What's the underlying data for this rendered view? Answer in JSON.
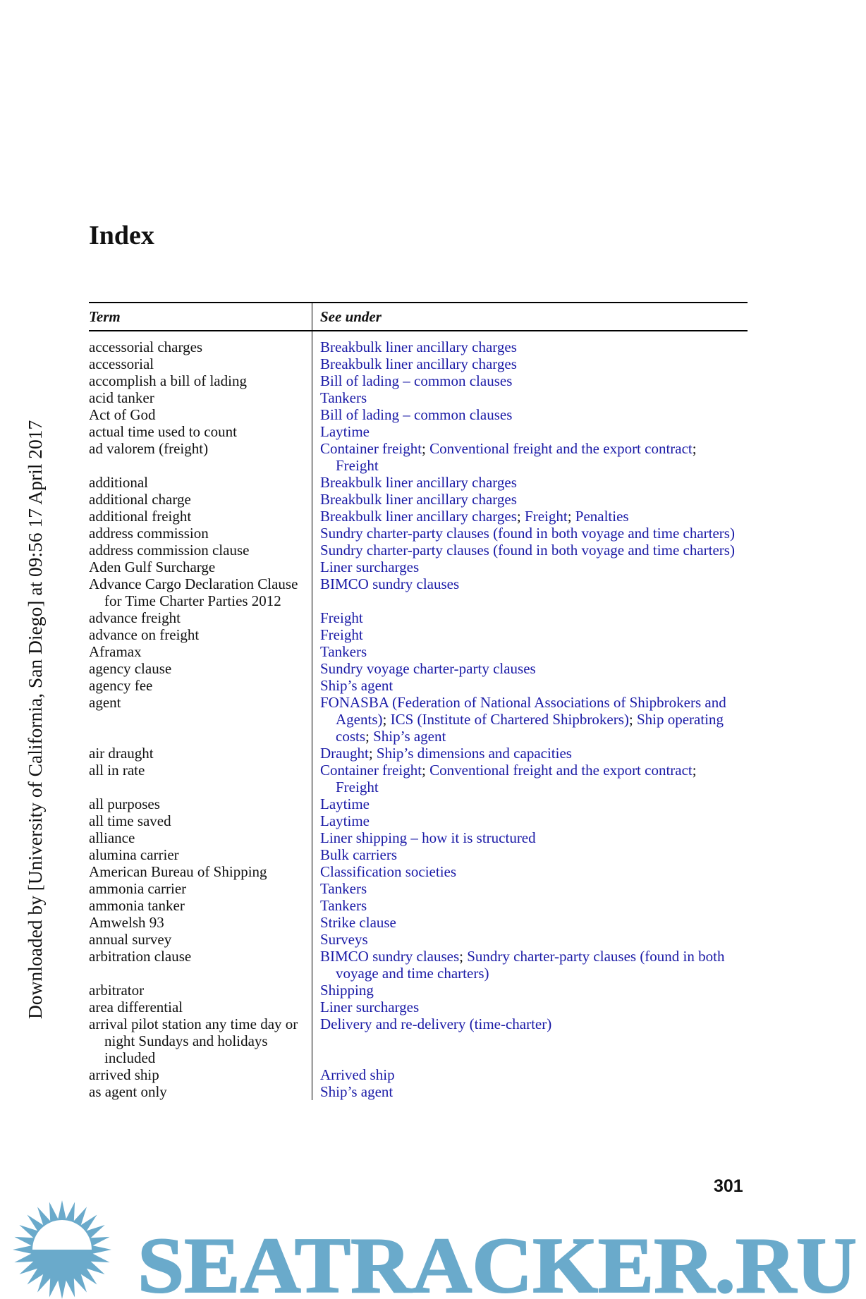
{
  "side_note": "Downloaded by [University of California, San Diego] at 09:56 17 April 2017",
  "title": "Index",
  "table": {
    "headers": {
      "term": "Term",
      "see_under": "See under"
    },
    "rows": [
      {
        "term": "accessorial charges",
        "see": [
          "Breakbulk liner ancillary charges"
        ]
      },
      {
        "term": "accessorial",
        "see": [
          "Breakbulk liner ancillary charges"
        ]
      },
      {
        "term": "accomplish a bill of lading",
        "see": [
          "Bill of lading – common clauses"
        ]
      },
      {
        "term": "acid tanker",
        "see": [
          "Tankers"
        ]
      },
      {
        "term": "Act of God",
        "see": [
          "Bill of lading – common clauses"
        ]
      },
      {
        "term": "actual time used to count",
        "see": [
          "Laytime"
        ]
      },
      {
        "term": "ad valorem (freight)",
        "see": [
          "Container freight",
          "Conventional freight and the export contract",
          "Freight"
        ]
      },
      {
        "term": "additional",
        "see": [
          "Breakbulk liner ancillary charges"
        ]
      },
      {
        "term": "additional charge",
        "see": [
          "Breakbulk liner ancillary charges"
        ]
      },
      {
        "term": "additional freight",
        "see": [
          "Breakbulk liner ancillary charges",
          "Freight",
          "Penalties"
        ]
      },
      {
        "term": "address commission",
        "see": [
          "Sundry charter-party clauses (found in both voyage and time charters)"
        ]
      },
      {
        "term": "address commission clause",
        "see": [
          "Sundry charter-party clauses (found in both voyage and time charters)"
        ]
      },
      {
        "term": "Aden Gulf Surcharge",
        "see": [
          "Liner surcharges"
        ]
      },
      {
        "term": "Advance Cargo Declaration Clause for Time Charter Parties 2012",
        "see": [
          "BIMCO sundry clauses"
        ]
      },
      {
        "term": "advance freight",
        "see": [
          "Freight"
        ]
      },
      {
        "term": "advance on freight",
        "see": [
          "Freight"
        ]
      },
      {
        "term": "Aframax",
        "see": [
          "Tankers"
        ]
      },
      {
        "term": "agency clause",
        "see": [
          "Sundry voyage charter-party clauses"
        ]
      },
      {
        "term": "agency fee",
        "see": [
          "Ship’s agent"
        ]
      },
      {
        "term": "agent",
        "see": [
          "FONASBA (Federation of National Associations of Shipbrokers and Agents)",
          "ICS (Institute of Chartered Shipbrokers)",
          "Ship operating costs",
          "Ship’s agent"
        ]
      },
      {
        "term": "air draught",
        "see": [
          "Draught",
          "Ship’s dimensions and capacities"
        ]
      },
      {
        "term": "all in rate",
        "see": [
          "Container freight",
          "Conventional freight and the export contract",
          "Freight"
        ]
      },
      {
        "term": "all purposes",
        "see": [
          "Laytime"
        ]
      },
      {
        "term": "all time saved",
        "see": [
          "Laytime"
        ]
      },
      {
        "term": "alliance",
        "see": [
          "Liner shipping – how it is structured"
        ]
      },
      {
        "term": "alumina carrier",
        "see": [
          "Bulk carriers"
        ]
      },
      {
        "term": "American Bureau of Shipping",
        "see": [
          "Classification societies"
        ]
      },
      {
        "term": "ammonia carrier",
        "see": [
          "Tankers"
        ]
      },
      {
        "term": "ammonia tanker",
        "see": [
          "Tankers"
        ]
      },
      {
        "term": "Amwelsh 93",
        "see": [
          "Strike clause"
        ]
      },
      {
        "term": "annual survey",
        "see": [
          "Surveys"
        ]
      },
      {
        "term": "arbitration clause",
        "see": [
          "BIMCO sundry clauses",
          "Sundry charter-party clauses (found in both voyage and time charters)"
        ]
      },
      {
        "term": "arbitrator",
        "see": [
          "Shipping"
        ]
      },
      {
        "term": "area differential",
        "see": [
          "Liner surcharges"
        ]
      },
      {
        "term": "arrival pilot station any time day or night Sundays and holidays included",
        "see": [
          "Delivery and re-delivery (time-charter)"
        ]
      },
      {
        "term": "arrived ship",
        "see": [
          "Arrived ship"
        ]
      },
      {
        "term": "as agent only",
        "see": [
          "Ship’s agent"
        ]
      }
    ]
  },
  "page_number": "301",
  "watermark": {
    "text": "SEATRACKER.RU",
    "color": "#6aaacb",
    "icon": "sun-icon"
  },
  "colors": {
    "link": "#1a1aa6"
  }
}
